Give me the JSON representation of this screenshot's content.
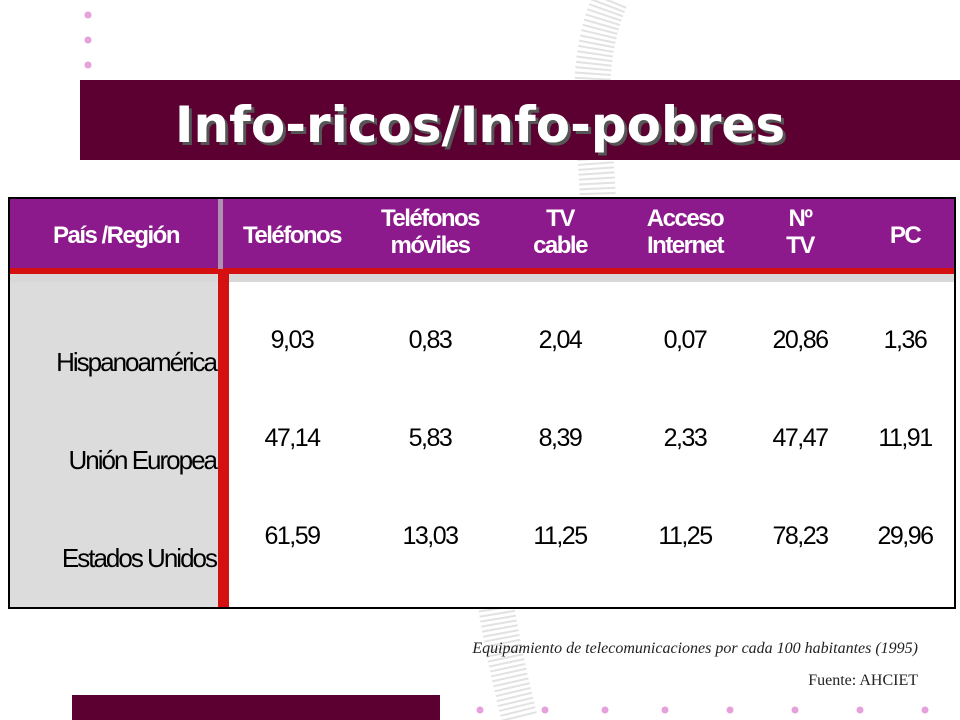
{
  "title": "Info-ricos/Info-pobres",
  "table": {
    "header": [
      "País /Región",
      "Teléfonos",
      "Teléfonos móviles",
      "TV cable",
      "Acceso Internet",
      "Nº TV",
      "PC"
    ],
    "rows": [
      [
        "Hispanoamérica",
        "9,03",
        "0,83",
        "2,04",
        "0,07",
        "20,86",
        "1,36"
      ],
      [
        "Unión Europea",
        "47,14",
        "5,83",
        "8,39",
        "2,33",
        "47,47",
        "11,91"
      ],
      [
        "Estados Unidos",
        "61,59",
        "13,03",
        "11,25",
        "11,25",
        "78,23",
        "29,96"
      ]
    ]
  },
  "caption": "Equipamiento de telecomunicaciones por cada 100 habitantes (1995)",
  "source": "Fuente: AHCIET"
}
